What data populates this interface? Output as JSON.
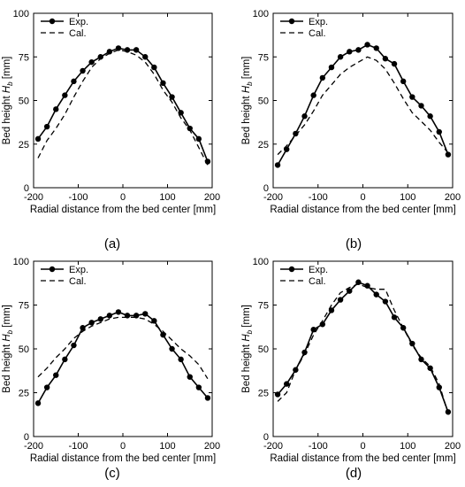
{
  "chart_data": [
    {
      "type": "line",
      "panel_label": "(a)",
      "xlabel": "Radial distance from the bed center [mm]",
      "ylabel": "Bed height H_b [mm]",
      "xlim": [
        -200,
        200
      ],
      "ylim": [
        0,
        100
      ],
      "xticks": [
        -200,
        -100,
        0,
        100,
        200
      ],
      "yticks": [
        0,
        25,
        50,
        75,
        100
      ],
      "legend_position": "top-left",
      "series": [
        {
          "name": "Exp.",
          "style": "solid-marker",
          "x": [
            -190,
            -170,
            -150,
            -130,
            -110,
            -90,
            -70,
            -50,
            -30,
            -10,
            10,
            30,
            50,
            70,
            90,
            110,
            130,
            150,
            170,
            190
          ],
          "y": [
            28,
            35,
            45,
            53,
            61,
            67,
            72,
            75,
            78,
            80,
            79,
            79,
            75,
            69,
            60,
            52,
            43,
            34,
            28,
            15
          ]
        },
        {
          "name": "Cal.",
          "style": "dashed",
          "x": [
            -190,
            -170,
            -150,
            -130,
            -110,
            -90,
            -70,
            -50,
            -30,
            -10,
            10,
            30,
            50,
            70,
            90,
            110,
            130,
            150,
            170,
            190
          ],
          "y": [
            17,
            27,
            34,
            42,
            52,
            61,
            69,
            74,
            77,
            79,
            78,
            76,
            72,
            65,
            56,
            49,
            40,
            33,
            23,
            13
          ]
        }
      ]
    },
    {
      "type": "line",
      "panel_label": "(b)",
      "xlabel": "Radial distance from the bed center [mm]",
      "ylabel": "Bed height H_b [mm]",
      "xlim": [
        -200,
        200
      ],
      "ylim": [
        0,
        100
      ],
      "xticks": [
        -200,
        -100,
        0,
        100,
        200
      ],
      "yticks": [
        0,
        25,
        50,
        75,
        100
      ],
      "legend_position": "top-left",
      "series": [
        {
          "name": "Exp.",
          "style": "solid-marker",
          "x": [
            -190,
            -170,
            -150,
            -130,
            -110,
            -90,
            -70,
            -50,
            -30,
            -10,
            10,
            30,
            50,
            70,
            90,
            110,
            130,
            150,
            170,
            190
          ],
          "y": [
            13,
            22,
            31,
            41,
            53,
            63,
            69,
            75,
            78,
            79,
            82,
            80,
            74,
            71,
            61,
            52,
            47,
            41,
            32,
            19
          ]
        },
        {
          "name": "Cal.",
          "style": "dashed",
          "x": [
            -190,
            -170,
            -150,
            -130,
            -110,
            -90,
            -70,
            -50,
            -30,
            -10,
            10,
            30,
            50,
            70,
            90,
            110,
            130,
            150,
            170,
            190
          ],
          "y": [
            19,
            24,
            30,
            36,
            44,
            53,
            59,
            65,
            69,
            72,
            75,
            73,
            68,
            60,
            51,
            43,
            38,
            33,
            26,
            20
          ]
        }
      ]
    },
    {
      "type": "line",
      "panel_label": "(c)",
      "xlabel": "Radial distance from the bed center [mm]",
      "ylabel": "Bed height H_b [mm]",
      "xlim": [
        -200,
        200
      ],
      "ylim": [
        0,
        100
      ],
      "xticks": [
        -200,
        -100,
        0,
        100,
        200
      ],
      "yticks": [
        0,
        25,
        50,
        75,
        100
      ],
      "legend_position": "top-left",
      "series": [
        {
          "name": "Exp.",
          "style": "solid-marker",
          "x": [
            -190,
            -170,
            -150,
            -130,
            -110,
            -90,
            -70,
            -50,
            -30,
            -10,
            10,
            30,
            50,
            70,
            90,
            110,
            130,
            150,
            170,
            190
          ],
          "y": [
            19,
            28,
            35,
            44,
            52,
            62,
            65,
            67,
            69,
            71,
            69,
            69,
            70,
            66,
            58,
            50,
            44,
            34,
            28,
            22
          ]
        },
        {
          "name": "Cal.",
          "style": "dashed",
          "x": [
            -190,
            -170,
            -150,
            -130,
            -110,
            -90,
            -70,
            -50,
            -30,
            -10,
            10,
            30,
            50,
            70,
            90,
            110,
            130,
            150,
            170,
            190
          ],
          "y": [
            34,
            39,
            45,
            50,
            56,
            60,
            63,
            65,
            67,
            68,
            68,
            68,
            67,
            64,
            60,
            55,
            50,
            46,
            41,
            33
          ]
        }
      ]
    },
    {
      "type": "line",
      "panel_label": "(d)",
      "xlabel": "Radial distance from the bed center [mm]",
      "ylabel": "Bed height H_b [mm]",
      "xlim": [
        -200,
        200
      ],
      "ylim": [
        0,
        100
      ],
      "xticks": [
        -200,
        -100,
        0,
        100,
        200
      ],
      "yticks": [
        0,
        25,
        50,
        75,
        100
      ],
      "legend_position": "top-left",
      "series": [
        {
          "name": "Exp.",
          "style": "solid-marker",
          "x": [
            -190,
            -170,
            -150,
            -130,
            -110,
            -90,
            -70,
            -50,
            -30,
            -10,
            10,
            30,
            50,
            70,
            90,
            110,
            130,
            150,
            170,
            190
          ],
          "y": [
            24,
            30,
            38,
            48,
            61,
            64,
            72,
            78,
            83,
            88,
            86,
            81,
            77,
            68,
            62,
            53,
            44,
            39,
            28,
            14
          ]
        },
        {
          "name": "Cal.",
          "style": "dashed",
          "x": [
            -190,
            -170,
            -150,
            -130,
            -110,
            -90,
            -70,
            -50,
            -30,
            -10,
            10,
            30,
            50,
            70,
            90,
            110,
            130,
            150,
            170,
            190
          ],
          "y": [
            20,
            25,
            38,
            47,
            58,
            66,
            75,
            82,
            85,
            87,
            85,
            84,
            84,
            72,
            62,
            52,
            45,
            40,
            30,
            13
          ]
        }
      ]
    }
  ]
}
